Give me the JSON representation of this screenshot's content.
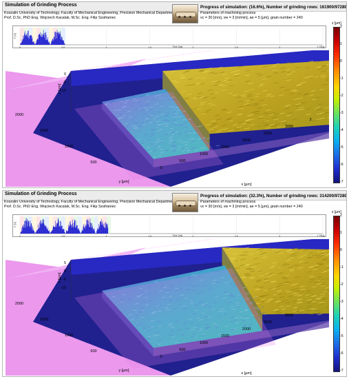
{
  "panels": [
    {
      "title": "Simulation of Grinding Process",
      "university": "Koszalin University of Technology, Faculty of Mechanical Engineering, Precision Mechanical Department",
      "authors": "Prof. D.Sc. PhD Eng. Wojciech Kacalak, M.Sc. Eng. Filip Szafraniec",
      "progress": "Progress of simulation: (16.6%), Number of grinding rows: 161900/972800",
      "progress_fraction": 0.166,
      "params_label": "Parameters of machining process",
      "params_values": "vc = 30 [m/s], vw = 3 [m/min], ae = 5 [μm], grain number = 240",
      "strip_ylabel": "F [N]",
      "strip_xlabel": "Time [ms]",
      "strip_time_ticks": [
        "0",
        "0.5",
        "1",
        "1.5",
        "2",
        "2.5",
        "3",
        "3.5"
      ],
      "strip_exp": "x 10^-3",
      "colorbar_title": "z [μm]",
      "colorbar_ticks": [
        "2",
        "1",
        "0",
        "-1",
        "-2",
        "-3",
        "-4",
        "-5",
        "-6",
        "-7"
      ],
      "z_label": "z [μm]",
      "z_ticks": [
        "0",
        "-5",
        "-10"
      ],
      "y_label": "y [μm]",
      "y_ticks": [
        "2000",
        "1500",
        "1000",
        "500"
      ],
      "x_label": "x [μm]",
      "x_ticks": [
        "0",
        "500",
        "1000",
        "1500",
        "2000",
        "2500",
        "3000",
        "3"
      ]
    },
    {
      "title": "Simulation of Grinding Process",
      "university": "Koszalin University of Technology, Faculty of Mechanical Engineering, Precision Mechanical Department",
      "authors": "Prof. D.Sc. PhD Eng. Wojciech Kacalak, M.Sc. Eng. Filip Szafraniec",
      "progress": "Progress of simulation: (32.3%), Number of grinding rows: 314200/972800",
      "progress_fraction": 0.323,
      "params_label": "Parameters of machining process",
      "params_values": "vc = 30 [m/s], vw = 3 [m/min], ae = 5 [μm], grain number = 240",
      "strip_ylabel": "F [N]",
      "strip_xlabel": "Time [ms]",
      "strip_time_ticks": [
        "0",
        "0.5",
        "1",
        "1.5",
        "2",
        "2.5",
        "3",
        "3.5"
      ],
      "strip_exp": "x 10^-3",
      "colorbar_title": "z [μm]",
      "colorbar_ticks": [
        "2",
        "1",
        "0",
        "-1",
        "-2",
        "-3",
        "-4",
        "-5",
        "-6",
        "-7"
      ],
      "z_label": "z [μm]",
      "z_ticks": [
        "5",
        "0",
        "-5",
        "-10"
      ],
      "y_label": "y [μm]",
      "y_ticks": [
        "2000",
        "1500",
        "1000",
        "500"
      ],
      "x_label": "x [μm]",
      "x_ticks": [
        "0",
        "500",
        "1000",
        "1500",
        "2000",
        "2500",
        "3000"
      ]
    }
  ],
  "colors": {
    "background_plane": "#1f1f8f",
    "wheel_pink": "#e27ae8",
    "workpiece_yellow": "#c9b227",
    "ground_cyan": "#35b9c9",
    "plot_blue": "#1c1cd0"
  }
}
